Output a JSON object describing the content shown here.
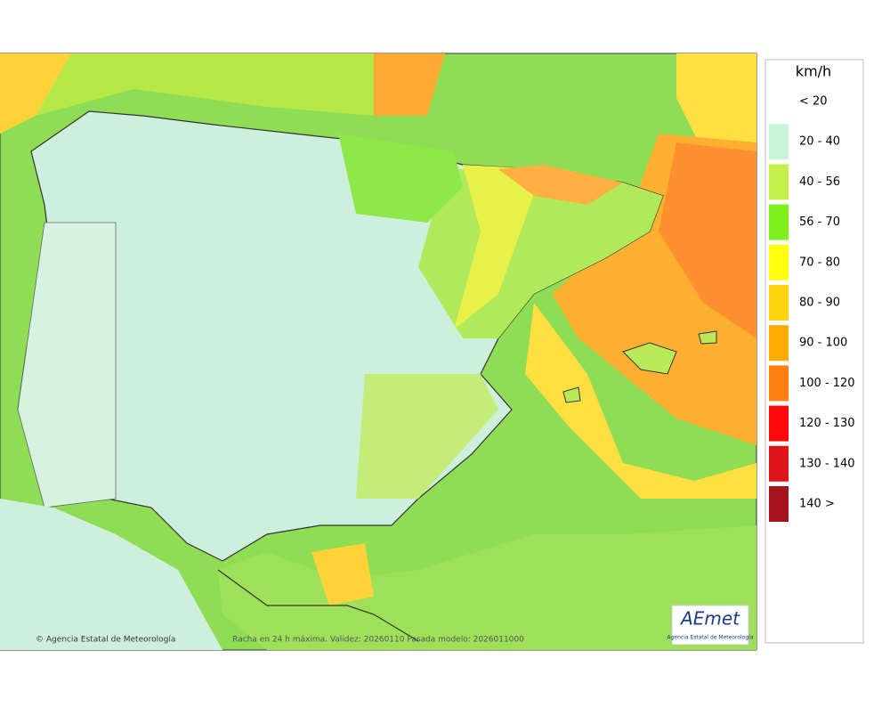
{
  "map": {
    "footer_left": "© Agencia Estatal de Meteorología",
    "footer_center": "Racha en 24 h máxima. Validez: 20260110 Pasada modelo: 2026011000",
    "logo": "AEmet",
    "logo_subtitle": "Agencia Estatal de Meteorología"
  },
  "legend": {
    "title": "km/h",
    "items": [
      {
        "label": "< 20"
      },
      {
        "label": "20 - 40",
        "color": "#c8f5d8"
      },
      {
        "label": "40 - 56",
        "color": "#c4f04a"
      },
      {
        "label": "56 - 70",
        "color": "#7ef01e"
      },
      {
        "label": "70 - 80",
        "color": "#ffff10"
      },
      {
        "label": "80 - 90",
        "color": "#ffd410"
      },
      {
        "label": "90 - 100",
        "color": "#ffaa00"
      },
      {
        "label": "100 - 120",
        "color": "#ff8010"
      },
      {
        "label": "120 - 130",
        "color": "#ff0a0a"
      },
      {
        "label": "130 - 140",
        "color": "#dd1418"
      },
      {
        "label": "140 >",
        "color": "#a8141e"
      }
    ]
  }
}
